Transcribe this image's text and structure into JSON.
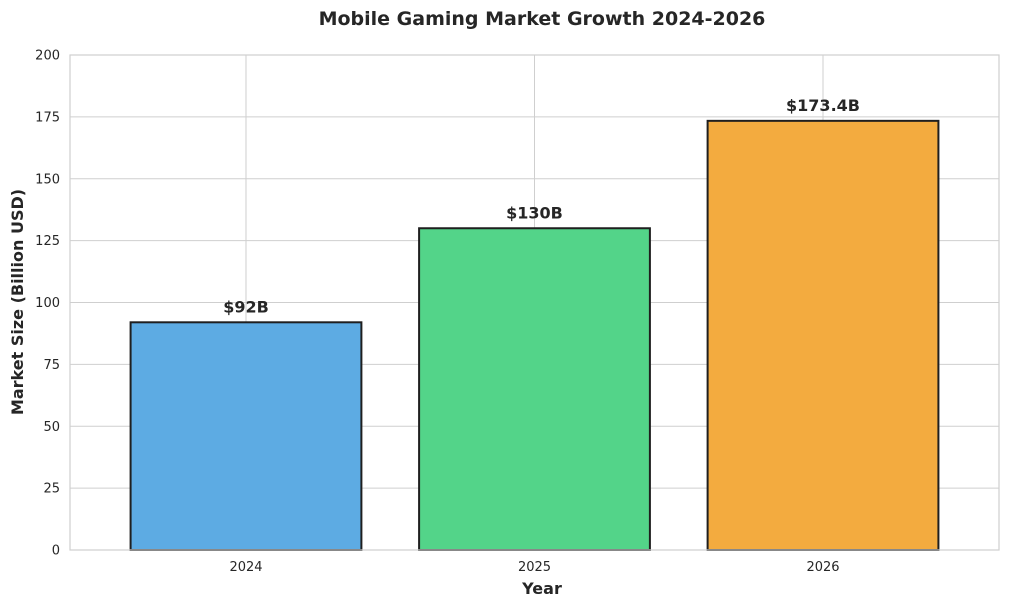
{
  "chart_data": {
    "type": "bar",
    "title": "Mobile Gaming Market Growth 2024-2026",
    "xlabel": "Year",
    "ylabel": "Market Size (Billion USD)",
    "categories": [
      "2024",
      "2025",
      "2026"
    ],
    "values": [
      92,
      130,
      173.4
    ],
    "data_labels": [
      "$92B",
      "$130B",
      "$173.4B"
    ],
    "bar_colors": [
      "#5DABE3",
      "#53D489",
      "#F3AB3F"
    ],
    "ylim": [
      0,
      200
    ],
    "yticks": [
      0,
      25,
      50,
      75,
      100,
      125,
      150,
      175,
      200
    ],
    "grid": true,
    "legend": "none"
  }
}
